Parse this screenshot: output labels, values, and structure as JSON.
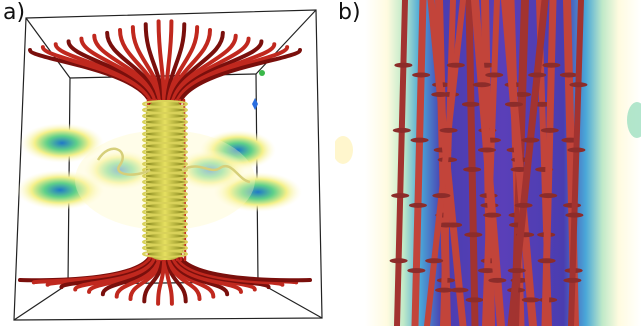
{
  "figure": {
    "panels": [
      {
        "label": "a)"
      },
      {
        "label": "b)"
      }
    ],
    "colors": {
      "field_lines": "#c0281e",
      "field_lines_dark": "#7a0f0c",
      "vortex_core": "#b8b83a",
      "glow_yellow": "#f4f08a",
      "glow_green": "#5fd08a",
      "glow_blue": "#1f78c8",
      "panel_b_tubes": "#c2443a",
      "panel_b_background": "#5a3fb8"
    }
  }
}
